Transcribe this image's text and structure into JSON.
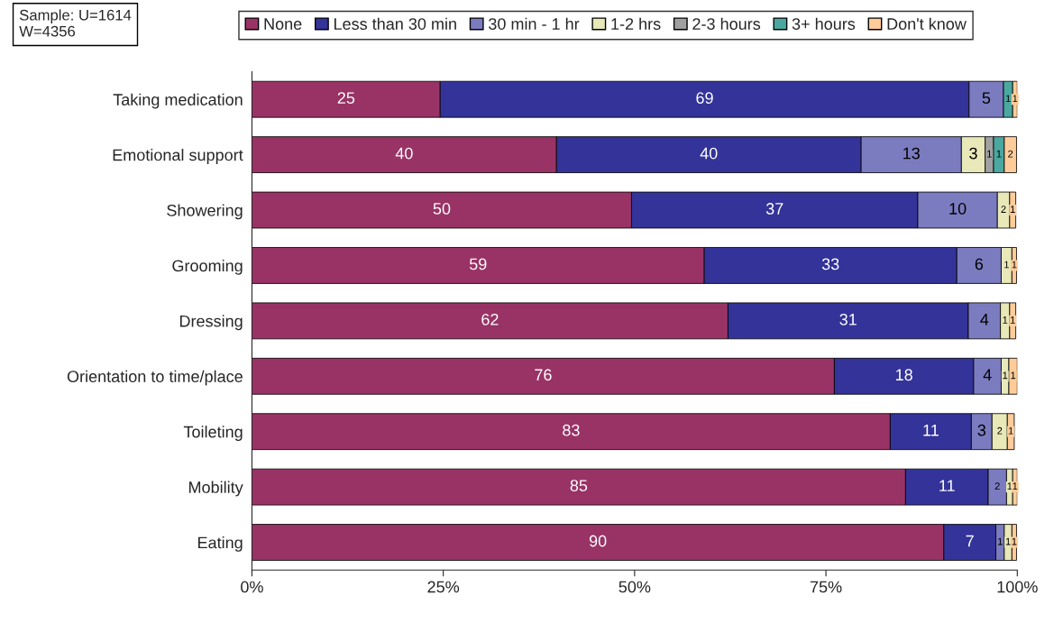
{
  "chart_data": {
    "type": "bar",
    "orientation": "horizontal",
    "stacked": true,
    "categories": [
      "Taking medication",
      "Emotional support",
      "Showering",
      "Grooming",
      "Dressing",
      "Orientation to time/place",
      "Toileting",
      "Mobility",
      "Eating"
    ],
    "series": [
      {
        "name": "None",
        "color": "#993366",
        "values": [
          24.6,
          39.8,
          49.6,
          59.1,
          62.2,
          76.1,
          83.4,
          85.4,
          90.4
        ],
        "value_labels": [
          "25",
          "40",
          "50",
          "59",
          "62",
          "76",
          "83",
          "85",
          "90"
        ]
      },
      {
        "name": "Less than 30 min",
        "color": "#333399",
        "values": [
          69.1,
          39.8,
          37.4,
          33.0,
          31.4,
          18.2,
          10.6,
          10.8,
          6.8
        ],
        "value_labels": [
          "69",
          "40",
          "37",
          "33",
          "31",
          "18",
          "11",
          "11",
          "7"
        ]
      },
      {
        "name": "30 min - 1 hr",
        "color": "#7b7bc0",
        "values": [
          4.5,
          13.1,
          10.4,
          5.8,
          4.2,
          3.6,
          2.7,
          2.4,
          1.1
        ],
        "value_labels": [
          "5",
          "13",
          "10",
          "6",
          "4",
          "4",
          "3",
          "2",
          "1"
        ]
      },
      {
        "name": "1-2 hrs",
        "color": "#e8e8b8",
        "values": [
          null,
          3.1,
          1.6,
          1.4,
          1.2,
          1.0,
          2.0,
          0.8,
          1.0
        ],
        "value_labels": [
          null,
          "3",
          "2",
          "1",
          "1",
          "1",
          "2",
          "1",
          "1"
        ]
      },
      {
        "name": "2-3 hours",
        "color": "#a0a0a0",
        "values": [
          null,
          1.1,
          null,
          null,
          null,
          null,
          null,
          null,
          null
        ],
        "value_labels": [
          null,
          "1",
          null,
          null,
          null,
          null,
          null,
          null,
          null
        ]
      },
      {
        "name": "3+ hours",
        "color": "#4aa8a0",
        "values": [
          1.2,
          1.4,
          null,
          null,
          null,
          null,
          null,
          null,
          null
        ],
        "value_labels": [
          "1",
          "1",
          null,
          null,
          null,
          null,
          null,
          null,
          null
        ]
      },
      {
        "name": "Don't know",
        "color": "#ffcc99",
        "values": [
          0.6,
          1.6,
          0.8,
          0.6,
          0.8,
          1.1,
          0.9,
          0.6,
          0.6
        ],
        "value_labels": [
          "1",
          "2",
          "1",
          "1",
          "1",
          "1",
          "1",
          "1",
          "1"
        ]
      }
    ],
    "xlim": [
      0,
      100
    ],
    "xticks": [
      {
        "value": 0,
        "label": "0%"
      },
      {
        "value": 25,
        "label": "25%"
      },
      {
        "value": 50,
        "label": "50%"
      },
      {
        "value": 75,
        "label": "75%"
      },
      {
        "value": 100,
        "label": "100%"
      }
    ],
    "grid": false,
    "legend": "top",
    "annotations": [
      "Sample: U=1614\nW=4356"
    ]
  }
}
